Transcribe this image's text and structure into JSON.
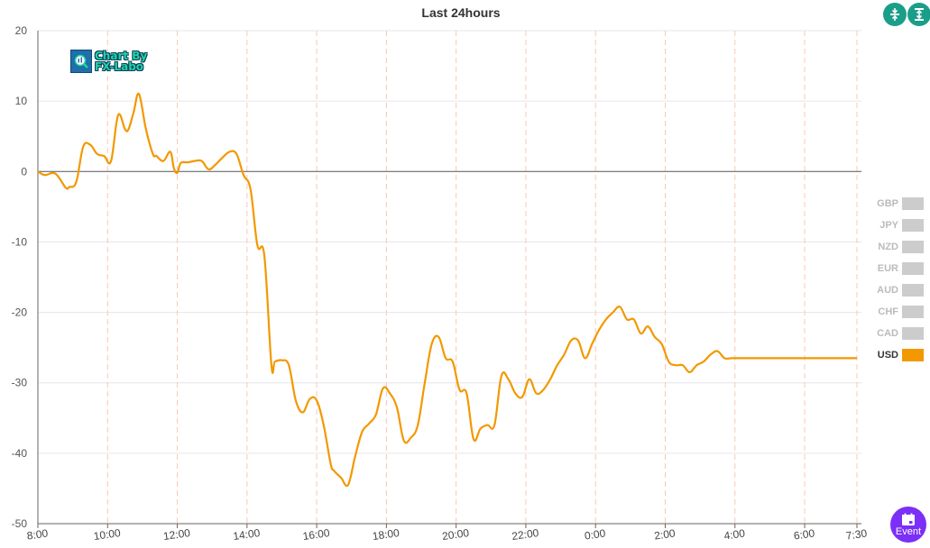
{
  "chart_data": {
    "type": "line",
    "title": "Last 24hours",
    "xlabel": "",
    "ylabel": "",
    "ylim": [
      -50,
      20
    ],
    "yticks": [
      20,
      10,
      0,
      -10,
      -20,
      -30,
      -40,
      -50
    ],
    "xlim": [
      0,
      23.5
    ],
    "xticks": [
      "8:00",
      "10:00",
      "12:00",
      "14:00",
      "16:00",
      "18:00",
      "20:00",
      "22:00",
      "0:00",
      "2:00",
      "4:00",
      "6:00",
      "7:30"
    ],
    "grid": true,
    "legend_position": "right",
    "series": [
      {
        "name": "USD",
        "color": "#f39800",
        "x": [
          0,
          0.2,
          0.5,
          0.8,
          0.9,
          1.1,
          1.3,
          1.5,
          1.7,
          1.9,
          2.1,
          2.3,
          2.5,
          2.6,
          2.75,
          2.9,
          3.1,
          3.3,
          3.4,
          3.6,
          3.8,
          3.9,
          4.0,
          4.1,
          4.3,
          4.5,
          4.7,
          4.9,
          5.1,
          5.3,
          5.5,
          5.7,
          5.9,
          6.1,
          6.3,
          6.5,
          6.7,
          6.8,
          7.0,
          7.2,
          7.4,
          7.6,
          7.8,
          8.0,
          8.2,
          8.4,
          8.5,
          8.7,
          8.9,
          9.1,
          9.3,
          9.5,
          9.7,
          9.9,
          10.1,
          10.3,
          10.5,
          10.7,
          10.9,
          11.1,
          11.3,
          11.5,
          11.7,
          11.9,
          12.1,
          12.3,
          12.5,
          12.7,
          12.9,
          13.1,
          13.3,
          13.5,
          13.7,
          13.9,
          14.1,
          14.3,
          14.5,
          14.7,
          14.9,
          15.1,
          15.3,
          15.5,
          15.7,
          15.9,
          16.1,
          16.3,
          16.5,
          16.7,
          16.9,
          17.1,
          17.3,
          17.5,
          17.7,
          17.9,
          18.1,
          18.3,
          18.5,
          18.7,
          18.9,
          19.1,
          19.3,
          19.5,
          19.7,
          19.9,
          20.1,
          20.3,
          20.5,
          20.7,
          20.9,
          21.1,
          21.3,
          21.5,
          21.7,
          21.9,
          22.1,
          22.3,
          22.5,
          22.7,
          22.9,
          23.1,
          23.3,
          23.5
        ],
        "values": [
          0,
          -0.5,
          -0.3,
          -2.3,
          -2.2,
          -1.5,
          3.5,
          3.8,
          2.5,
          2.2,
          1.5,
          8.0,
          6.0,
          6.0,
          8.5,
          11.0,
          6.0,
          2.5,
          2.2,
          1.5,
          2.8,
          0.5,
          -0.2,
          1.2,
          1.3,
          1.5,
          1.5,
          0.3,
          1.0,
          2.0,
          2.8,
          2.5,
          -0.5,
          -2.5,
          -10.5,
          -12.0,
          -27.5,
          -27.0,
          -26.8,
          -27.5,
          -32.5,
          -34.2,
          -32.3,
          -32.5,
          -36.0,
          -41.5,
          -42.5,
          -43.5,
          -44.5,
          -40.5,
          -37.0,
          -35.8,
          -34.5,
          -30.8,
          -31.5,
          -33.5,
          -38.2,
          -37.8,
          -36.0,
          -30.0,
          -24.5,
          -23.5,
          -26.5,
          -27.0,
          -31.0,
          -31.5,
          -38.0,
          -36.5,
          -36.0,
          -36.0,
          -29.0,
          -29.5,
          -31.5,
          -32.0,
          -29.5,
          -31.5,
          -31.0,
          -29.5,
          -27.5,
          -26.0,
          -24.0,
          -24.0,
          -26.5,
          -24.5,
          -22.5,
          -21.0,
          -20.0,
          -19.2,
          -21.0,
          -21.0,
          -23.0,
          -22.0,
          -23.5,
          -24.5,
          -27.0,
          -27.5,
          -27.5,
          -28.5,
          -27.5,
          -27.0,
          -26.0,
          -25.5,
          -26.5,
          -26.5,
          -26.5,
          -26.5,
          -26.5,
          -26.5,
          -26.5,
          -26.5,
          -26.5,
          -26.5,
          -26.5,
          -26.5,
          -26.5,
          -26.5,
          -26.5,
          -26.5,
          -26.5,
          -26.5,
          -26.5,
          -26.5
        ]
      }
    ]
  },
  "legend": {
    "items": [
      {
        "label": "GBP",
        "color": "#cccccc",
        "active": false
      },
      {
        "label": "JPY",
        "color": "#cccccc",
        "active": false
      },
      {
        "label": "NZD",
        "color": "#cccccc",
        "active": false
      },
      {
        "label": "EUR",
        "color": "#cccccc",
        "active": false
      },
      {
        "label": "AUD",
        "color": "#cccccc",
        "active": false
      },
      {
        "label": "CHF",
        "color": "#cccccc",
        "active": false
      },
      {
        "label": "CAD",
        "color": "#cccccc",
        "active": false
      },
      {
        "label": "USD",
        "color": "#f39800",
        "active": true
      }
    ]
  },
  "logo": {
    "line1": "Chart By",
    "line2": "FX-Labo"
  },
  "toolbar": {
    "compress_icon": "compress-icon",
    "fit_icon": "fit-height-icon"
  },
  "event_button": {
    "label": "Event",
    "icon": "calendar-icon"
  }
}
